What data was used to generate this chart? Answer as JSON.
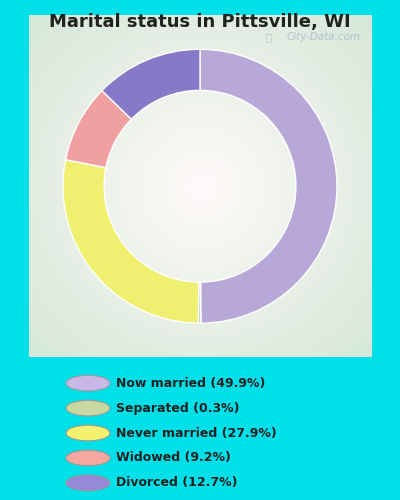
{
  "title": "Marital status in Pittsville, WI",
  "slices": [
    49.9,
    0.3,
    27.9,
    9.2,
    12.7
  ],
  "colors": [
    "#b8a8d8",
    "#b8ddb8",
    "#f0f070",
    "#f0a0a0",
    "#8878c8"
  ],
  "labels": [
    "Now married (49.9%)",
    "Separated (0.3%)",
    "Never married (27.9%)",
    "Widowed (9.2%)",
    "Divorced (12.7%)"
  ],
  "legend_colors": [
    "#c8b8e8",
    "#c8d8a0",
    "#f5f070",
    "#f5a8a0",
    "#9888d8"
  ],
  "background_outer": "#00e0e8",
  "title_fontsize": 13,
  "watermark": "City-Data.com"
}
